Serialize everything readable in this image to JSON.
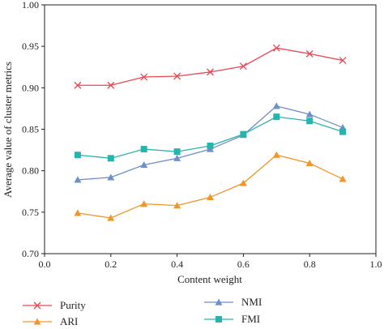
{
  "chart_data": {
    "type": "line",
    "title": "",
    "xlabel": "Content weight",
    "ylabel": "Average value of cluster metrics",
    "xlim": [
      0.0,
      1.0
    ],
    "ylim": [
      0.7,
      1.0
    ],
    "xticks": [
      "0.0",
      "0.2",
      "0.4",
      "0.6",
      "0.8",
      "1.0"
    ],
    "xtick_values": [
      0.0,
      0.2,
      0.4,
      0.6,
      0.8,
      1.0
    ],
    "yticks": [
      "0.70",
      "0.75",
      "0.80",
      "0.85",
      "0.90",
      "0.95",
      "1.00"
    ],
    "ytick_values": [
      0.7,
      0.75,
      0.8,
      0.85,
      0.9,
      0.95,
      1.0
    ],
    "grid": false,
    "legend_placement": "bottom",
    "x": [
      0.1,
      0.2,
      0.3,
      0.4,
      0.5,
      0.6,
      0.7,
      0.8,
      0.9
    ],
    "series": [
      {
        "name": "Purity",
        "marker": "x",
        "color": "#e8474f",
        "values": [
          0.903,
          0.903,
          0.913,
          0.914,
          0.919,
          0.926,
          0.948,
          0.941,
          0.933
        ]
      },
      {
        "name": "ARI",
        "marker": "triangle",
        "color": "#f0962a",
        "values": [
          0.749,
          0.743,
          0.76,
          0.758,
          0.768,
          0.785,
          0.819,
          0.809,
          0.79
        ]
      },
      {
        "name": "NMI",
        "marker": "triangle",
        "color": "#6f8fc9",
        "values": [
          0.789,
          0.792,
          0.807,
          0.815,
          0.826,
          0.843,
          0.878,
          0.868,
          0.852
        ]
      },
      {
        "name": "FMI",
        "marker": "square",
        "color": "#29b3ad",
        "values": [
          0.819,
          0.815,
          0.826,
          0.823,
          0.83,
          0.844,
          0.865,
          0.86,
          0.847
        ]
      }
    ]
  }
}
